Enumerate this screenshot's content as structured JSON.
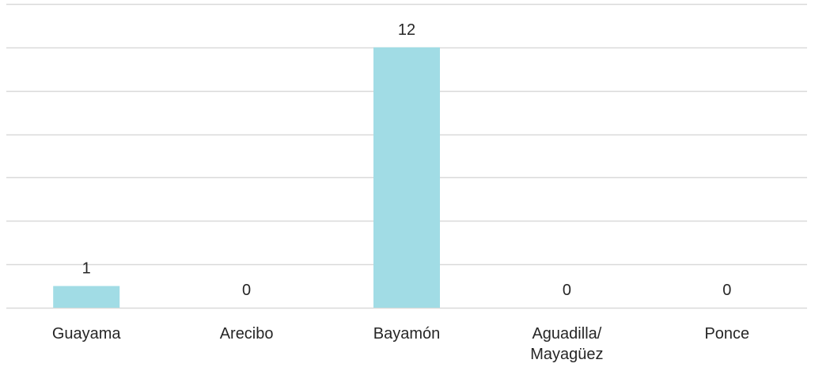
{
  "chart_data": {
    "type": "bar",
    "categories": [
      [
        "Guayama"
      ],
      [
        "Arecibo"
      ],
      [
        "Bayamón"
      ],
      [
        "Aguadilla/",
        "Mayagüez"
      ],
      [
        "Ponce"
      ]
    ],
    "values": [
      1,
      0,
      12,
      0,
      0
    ],
    "ylim": [
      0,
      14
    ],
    "grid": true,
    "colors": {
      "bar": "#a1dce5",
      "grid": "#d9d9d9",
      "text": "#262626"
    }
  }
}
